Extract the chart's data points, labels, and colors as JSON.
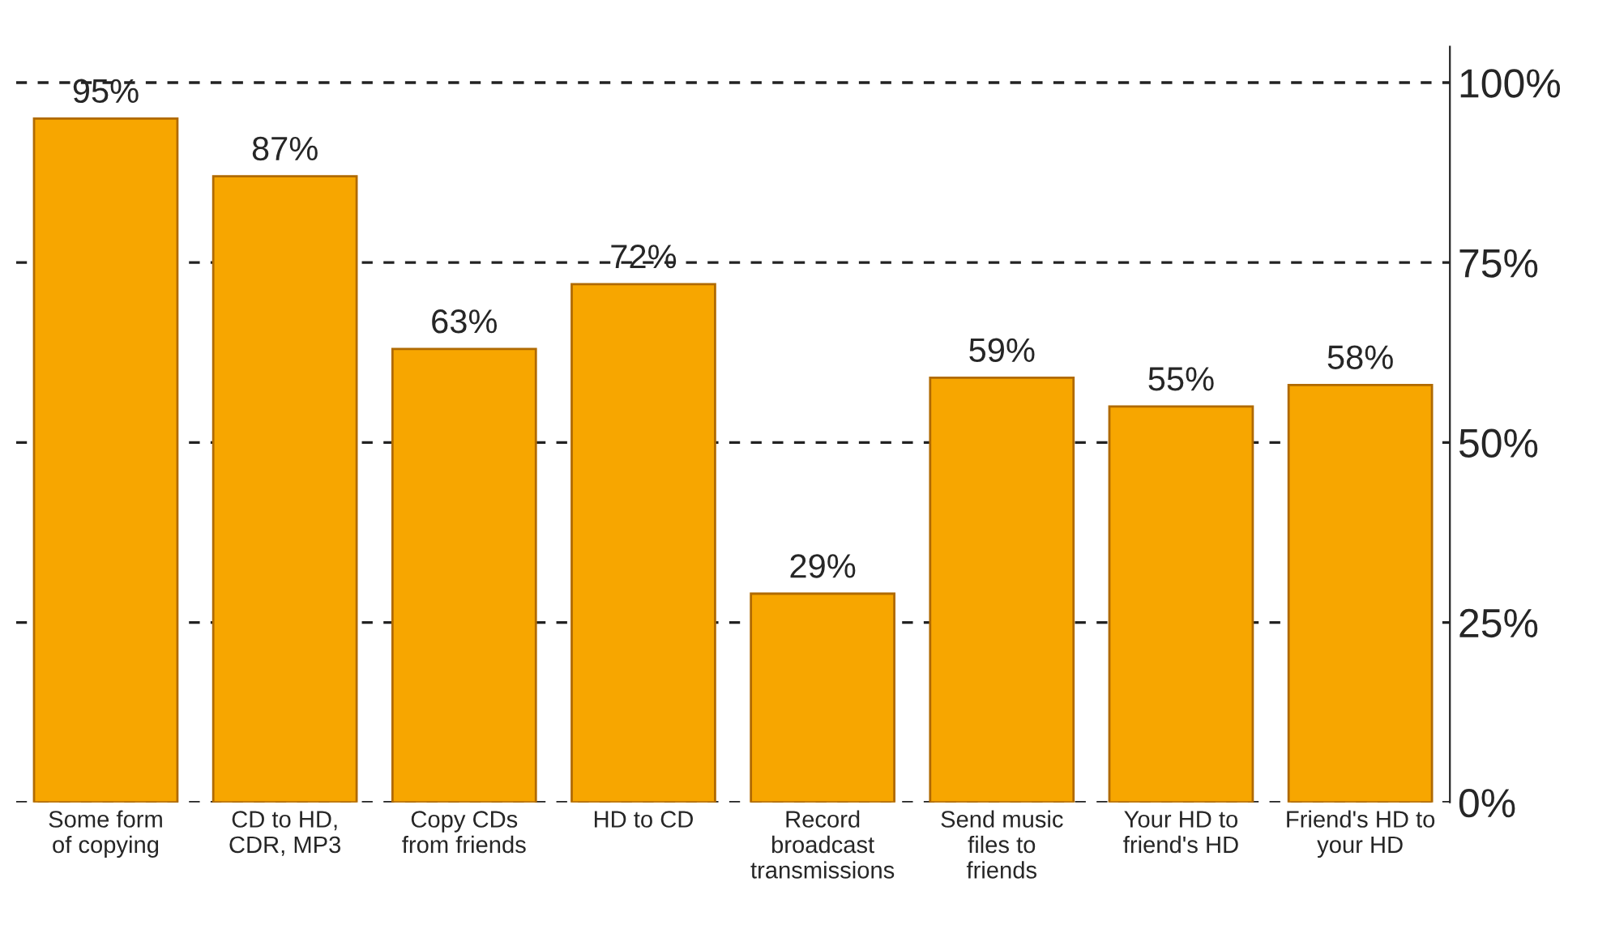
{
  "chart_data": {
    "type": "bar",
    "categories": [
      "Some form\nof copying",
      "CD to HD,\nCDR, MP3",
      "Copy CDs\nfrom friends",
      "HD to CD",
      "Record\nbroadcast\ntransmissions",
      "Send music\nfiles to\nfriends",
      "Your HD to\nfriend's HD",
      "Friend's HD to\nyour HD"
    ],
    "values": [
      95,
      87,
      63,
      72,
      29,
      59,
      55,
      58
    ],
    "value_labels": [
      "95%",
      "87%",
      "63%",
      "72%",
      "29%",
      "59%",
      "55%",
      "58%"
    ],
    "color": "#f7a600",
    "ylim": [
      0,
      105
    ],
    "yticks": [
      {
        "value": 0,
        "label": "0%"
      },
      {
        "value": 25,
        "label": "25%"
      },
      {
        "value": 50,
        "label": "50%"
      },
      {
        "value": 75,
        "label": "75%"
      },
      {
        "value": 100,
        "label": "100%"
      }
    ],
    "grid": "y"
  }
}
